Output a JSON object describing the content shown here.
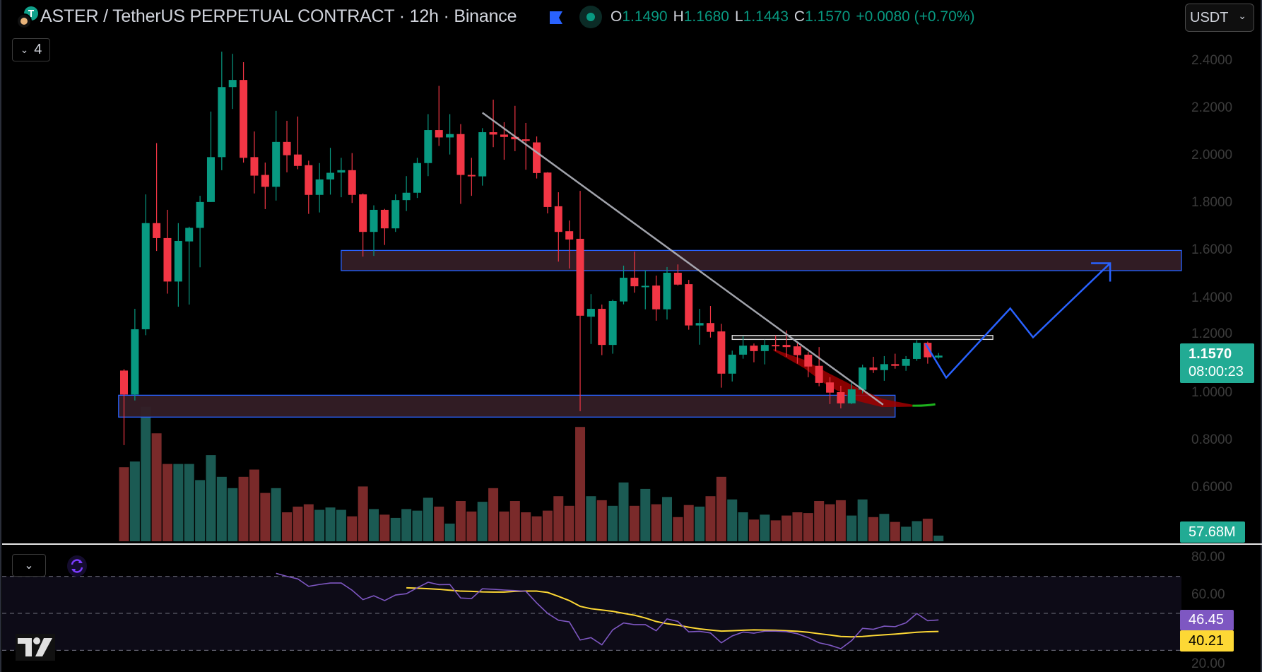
{
  "header": {
    "title": "ASTER / TetherUS PERPETUAL CONTRACT · 12h · Binance",
    "ohlc": {
      "o_label": "O",
      "o": "1.1490",
      "h_label": "H",
      "h": "1.1680",
      "l_label": "L",
      "l": "1.1443",
      "c_label": "C",
      "c": "1.1570",
      "change": "+0.0080 (+0.70%)"
    },
    "currency": "USDT",
    "indicator_count": "4"
  },
  "colors": {
    "up": "#089981",
    "down": "#f23645",
    "vol_up": "#1b5a53",
    "vol_down": "#7a2a2a",
    "rsi": "#7e57c2",
    "rsi_ma": "#fdd835",
    "zone_border": "#2962ff",
    "zone_fill": "#341d26",
    "projection": "#2962ff",
    "trendline": "#b2b5be"
  },
  "price_axis": {
    "ticks": [
      "2.4000",
      "2.2000",
      "2.0000",
      "1.8000",
      "1.6000",
      "1.4000",
      "1.2000",
      "1.0000",
      "0.8000",
      "0.6000"
    ]
  },
  "last_price": {
    "price": "1.1570",
    "countdown": "08:00:23"
  },
  "volume_badge": "57.68M",
  "rsi_axis": {
    "ticks": [
      "80.00",
      "60.00",
      "20.00"
    ]
  },
  "rsi_badges": {
    "rsi": "46.45",
    "ma": "40.21"
  },
  "chart_data": {
    "type": "candlestick",
    "symbol": "ASTER/USDT perpetual",
    "interval": "12h",
    "ylim": [
      0.55,
      2.45
    ],
    "candles_ohlc": [
      [
        1.094,
        1.1,
        0.78,
        0.993
      ],
      [
        0.993,
        1.354,
        0.968,
        1.268
      ],
      [
        1.268,
        1.836,
        1.243,
        1.715
      ],
      [
        1.715,
        2.052,
        1.598,
        1.652
      ],
      [
        1.652,
        1.771,
        1.418,
        1.469
      ],
      [
        1.469,
        1.715,
        1.363,
        1.64
      ],
      [
        1.638,
        1.7,
        1.372,
        1.695
      ],
      [
        1.695,
        1.83,
        1.529,
        1.804
      ],
      [
        1.804,
        2.185,
        1.804,
        1.993
      ],
      [
        1.993,
        2.437,
        1.938,
        2.288
      ],
      [
        2.288,
        2.428,
        2.196,
        2.318
      ],
      [
        2.318,
        2.393,
        1.97,
        1.99
      ],
      [
        1.993,
        2.101,
        1.84,
        1.915
      ],
      [
        1.918,
        1.97,
        1.774,
        1.868
      ],
      [
        1.868,
        2.188,
        1.81,
        2.057
      ],
      [
        2.057,
        2.146,
        1.929,
        2.001
      ],
      [
        2.004,
        2.164,
        1.942,
        1.956
      ],
      [
        1.959,
        1.978,
        1.754,
        1.834
      ],
      [
        1.834,
        1.968,
        1.76,
        1.899
      ],
      [
        1.899,
        2.032,
        1.835,
        1.927
      ],
      [
        1.928,
        1.99,
        1.824,
        1.938
      ],
      [
        1.938,
        2.01,
        1.8,
        1.834
      ],
      [
        1.836,
        1.84,
        1.574,
        1.678
      ],
      [
        1.678,
        1.79,
        1.577,
        1.771
      ],
      [
        1.771,
        1.775,
        1.623,
        1.693
      ],
      [
        1.693,
        1.836,
        1.678,
        1.812
      ],
      [
        1.812,
        1.913,
        1.766,
        1.843
      ],
      [
        1.843,
        1.99,
        1.821,
        1.968
      ],
      [
        1.968,
        2.174,
        1.913,
        2.107
      ],
      [
        2.107,
        2.293,
        2.04,
        2.076
      ],
      [
        2.076,
        2.174,
        2.004,
        2.09
      ],
      [
        2.09,
        2.132,
        1.796,
        1.918
      ],
      [
        1.918,
        1.99,
        1.83,
        1.912
      ],
      [
        1.912,
        2.115,
        1.873,
        2.098
      ],
      [
        2.098,
        2.235,
        2.035,
        2.088
      ],
      [
        2.088,
        2.14,
        1.982,
        2.078
      ],
      [
        2.078,
        2.209,
        2.018,
        2.068
      ],
      [
        2.068,
        2.137,
        1.94,
        2.061
      ],
      [
        2.055,
        2.08,
        1.903,
        1.926
      ],
      [
        1.928,
        1.93,
        1.756,
        1.783
      ],
      [
        1.786,
        1.845,
        1.553,
        1.678
      ],
      [
        1.681,
        1.726,
        1.524,
        1.646
      ],
      [
        1.649,
        1.851,
        0.923,
        1.325
      ],
      [
        1.321,
        1.416,
        1.206,
        1.354
      ],
      [
        1.354,
        1.372,
        1.159,
        1.202
      ],
      [
        1.202,
        1.393,
        1.165,
        1.387
      ],
      [
        1.385,
        1.536,
        1.373,
        1.485
      ],
      [
        1.485,
        1.595,
        1.422,
        1.449
      ],
      [
        1.449,
        1.517,
        1.352,
        1.451
      ],
      [
        1.452,
        1.494,
        1.304,
        1.352
      ],
      [
        1.352,
        1.53,
        1.309,
        1.506
      ],
      [
        1.506,
        1.541,
        1.452,
        1.456
      ],
      [
        1.458,
        1.476,
        1.266,
        1.284
      ],
      [
        1.284,
        1.354,
        1.203,
        1.294
      ],
      [
        1.294,
        1.366,
        1.233,
        1.257
      ],
      [
        1.259,
        1.291,
        1.022,
        1.081
      ],
      [
        1.081,
        1.178,
        1.048,
        1.161
      ],
      [
        1.161,
        1.239,
        1.144,
        1.199
      ],
      [
        1.199,
        1.208,
        1.129,
        1.176
      ],
      [
        1.176,
        1.224,
        1.12,
        1.202
      ],
      [
        1.202,
        1.242,
        1.176,
        1.199
      ],
      [
        1.202,
        1.263,
        1.152,
        1.193
      ],
      [
        1.196,
        1.209,
        1.123,
        1.159
      ],
      [
        1.161,
        1.173,
        1.066,
        1.111
      ],
      [
        1.114,
        1.193,
        1.028,
        1.042
      ],
      [
        1.044,
        1.066,
        0.953,
        1.001
      ],
      [
        1.003,
        1.03,
        0.935,
        0.956
      ],
      [
        0.956,
        1.047,
        0.953,
        1.015
      ],
      [
        1.013,
        1.119,
        0.998,
        1.107
      ],
      [
        1.107,
        1.152,
        1.084,
        1.096
      ],
      [
        1.096,
        1.155,
        1.051,
        1.121
      ],
      [
        1.121,
        1.165,
        1.102,
        1.114
      ],
      [
        1.114,
        1.155,
        1.093,
        1.143
      ],
      [
        1.143,
        1.222,
        1.135,
        1.211
      ],
      [
        1.211,
        1.216,
        1.123,
        1.15
      ],
      [
        1.149,
        1.168,
        1.1443,
        1.157
      ]
    ],
    "volume_m": [
      754,
      812,
      1369,
      1099,
      787,
      787,
      787,
      623,
      877,
      656,
      541,
      656,
      730,
      492,
      541,
      295,
      353,
      377,
      320,
      344,
      320,
      254,
      558,
      328,
      271,
      238,
      328,
      312,
      443,
      353,
      180,
      410,
      303,
      402,
      541,
      303,
      410,
      295,
      254,
      312,
      459,
      361,
      1164,
      459,
      418,
      361,
      599,
      361,
      533,
      377,
      451,
      246,
      369,
      353,
      459,
      656,
      426,
      295,
      221,
      271,
      213,
      262,
      295,
      287,
      410,
      377,
      418,
      262,
      426,
      246,
      279,
      197,
      148,
      205,
      230,
      57.68
    ],
    "rsi_start_index": 14,
    "rsi": [
      71.6,
      70,
      68.6,
      64.6,
      65.6,
      66.4,
      66.4,
      62.5,
      57.4,
      59.5,
      56.9,
      59.9,
      60.6,
      63.8,
      66.8,
      65.5,
      65.6,
      58.3,
      58,
      63.3,
      63,
      62.6,
      62.3,
      61.9,
      55.6,
      50,
      46.3,
      45.4,
      35.6,
      36.9,
      33,
      41.1,
      44.8,
      43.9,
      43.9,
      40.6,
      47,
      45.6,
      40,
      40.3,
      39.4,
      34.1,
      37.8,
      39.9,
      39.3,
      40.4,
      40.4,
      40.1,
      39,
      36.9,
      34.1,
      32.8,
      30.9,
      35.3,
      41.9,
      41.4,
      43.1,
      42.8,
      44.9,
      49.9,
      46,
      46.45
    ],
    "rsi_ma_start_index": 26,
    "rsi_ma": [
      63.8,
      63.6,
      63.3,
      63,
      62.5,
      62,
      61.9,
      61.6,
      61.5,
      61.5,
      61.9,
      62,
      62,
      61.3,
      59.2,
      56.9,
      53.8,
      52.5,
      51.8,
      51.1,
      50,
      49,
      47.5,
      45.6,
      44.4,
      43.6,
      42.5,
      41.6,
      41,
      40.4,
      40.6,
      40.9,
      41.1,
      41,
      40.9,
      40.6,
      40.3,
      39.8,
      39,
      38.3,
      37.5,
      37.3,
      37.5,
      38,
      38.4,
      38.8,
      39.3,
      39.8,
      40.1,
      40.21
    ],
    "rsi_levels": [
      70,
      50,
      30
    ],
    "rsi_ylim": [
      18,
      86
    ],
    "zones": [
      {
        "name": "resistance",
        "from_index": 20,
        "to": "right-edge",
        "price_top": 1.6,
        "price_bottom": 1.515
      },
      {
        "name": "support",
        "from_index": -0.5,
        "to_index": 71,
        "price_top": 0.99,
        "price_bottom": 0.898
      }
    ],
    "range_box": {
      "from_index": 56,
      "to_index": 80,
      "price_top": 1.242,
      "price_bottom": 1.225
    },
    "trendline": {
      "start": [
        33,
        2.18
      ],
      "end": [
        69.9,
        0.95
      ]
    },
    "projection_path": [
      [
        73.8,
        1.207
      ],
      [
        75.7,
        1.064
      ],
      [
        81.6,
        1.356
      ],
      [
        83.7,
        1.234
      ],
      [
        90.8,
        1.546
      ]
    ]
  }
}
